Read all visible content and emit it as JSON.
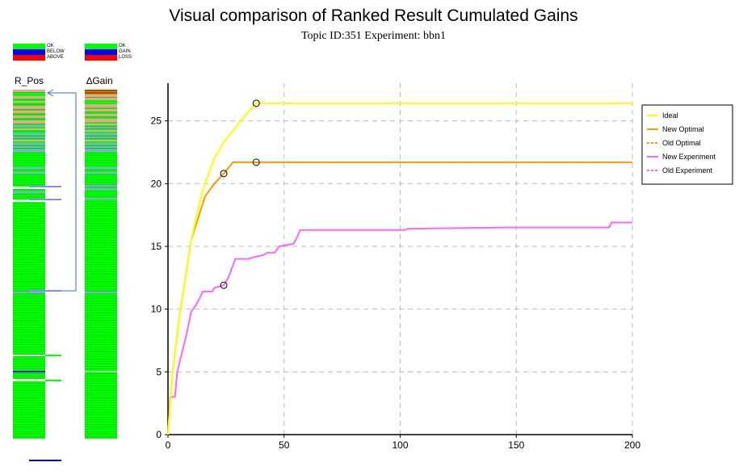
{
  "header": {
    "title": "Visual comparison of Ranked Result Cumulated Gains",
    "subtitle": "Topic ID:351 Experiment: bbn1"
  },
  "left_legend": {
    "items": [
      {
        "label": "OK",
        "color": "#00ff00"
      },
      {
        "label": "BELOW",
        "color": "#0000ff"
      },
      {
        "label": "ABOVE",
        "color": "#ff0000"
      }
    ]
  },
  "right_legend": {
    "items": [
      {
        "label": "OK",
        "color": "#00ff00"
      },
      {
        "label": "GAIN",
        "color": "#0000ff"
      },
      {
        "label": "LOSS",
        "color": "#ff0000"
      }
    ]
  },
  "columns": {
    "rpos_label": "R_Pos",
    "dgain_label": "∆Gain"
  },
  "chart_data": {
    "type": "line",
    "xlim": [
      0,
      200
    ],
    "ylim": [
      0,
      28
    ],
    "xticks": [
      0,
      50,
      100,
      150,
      200
    ],
    "yticks": [
      0,
      5,
      10,
      15,
      20,
      25
    ],
    "grid": true,
    "legend_position": "top-right",
    "series": [
      {
        "name": "Ideal",
        "color": "#ffff00",
        "dash": false,
        "points": [
          [
            0,
            0
          ],
          [
            2,
            5
          ],
          [
            5,
            9.5
          ],
          [
            10,
            15.5
          ],
          [
            15,
            19.5
          ],
          [
            20,
            22
          ],
          [
            24,
            23.3
          ],
          [
            30,
            24.7
          ],
          [
            35,
            25.8
          ],
          [
            38,
            26.4
          ],
          [
            200,
            26.4
          ]
        ]
      },
      {
        "name": "New Optimal",
        "color": "#ff9900",
        "dash": false,
        "points": [
          [
            0,
            0
          ],
          [
            2,
            5
          ],
          [
            5,
            9.5
          ],
          [
            10,
            15.5
          ],
          [
            16,
            19
          ],
          [
            20,
            20
          ],
          [
            24,
            20.8
          ],
          [
            28,
            21.7
          ],
          [
            200,
            21.7
          ]
        ]
      },
      {
        "name": "Old Optimal",
        "color": "#ff9900",
        "dash": true,
        "points": [
          [
            0,
            0
          ],
          [
            2,
            5
          ],
          [
            5,
            9.5
          ],
          [
            10,
            15.5
          ],
          [
            16,
            19
          ],
          [
            20,
            20
          ],
          [
            24,
            20.8
          ],
          [
            28,
            21.7
          ],
          [
            200,
            21.7
          ]
        ]
      },
      {
        "name": "New Experiment",
        "color": "#ff66ff",
        "dash": false,
        "points": [
          [
            0,
            0
          ],
          [
            1,
            3
          ],
          [
            3,
            3
          ],
          [
            4,
            5
          ],
          [
            6,
            6.5
          ],
          [
            8,
            8
          ],
          [
            10,
            9.8
          ],
          [
            12,
            10.3
          ],
          [
            14,
            11
          ],
          [
            15,
            11.4
          ],
          [
            19,
            11.4
          ],
          [
            20,
            11.7
          ],
          [
            24,
            11.9
          ],
          [
            26,
            12.5
          ],
          [
            27,
            13
          ],
          [
            28,
            13.5
          ],
          [
            29,
            14
          ],
          [
            35,
            14
          ],
          [
            36,
            14.1
          ],
          [
            41,
            14.3
          ],
          [
            43,
            14.5
          ],
          [
            46,
            14.5
          ],
          [
            48,
            15
          ],
          [
            51,
            15.1
          ],
          [
            54,
            15.2
          ],
          [
            55,
            15.5
          ],
          [
            57,
            16.3
          ],
          [
            102,
            16.3
          ],
          [
            103,
            16.4
          ],
          [
            145,
            16.5
          ],
          [
            190,
            16.5
          ],
          [
            191,
            16.9
          ],
          [
            200,
            16.9
          ]
        ]
      },
      {
        "name": "Old Experiment",
        "color": "#ff66ff",
        "dash": true,
        "points": [
          [
            0,
            0
          ],
          [
            1,
            3
          ],
          [
            3,
            3
          ],
          [
            4,
            5
          ],
          [
            6,
            6.5
          ],
          [
            8,
            8
          ],
          [
            10,
            9.8
          ],
          [
            12,
            10.3
          ],
          [
            14,
            11
          ],
          [
            15,
            11.4
          ],
          [
            19,
            11.4
          ],
          [
            20,
            11.7
          ],
          [
            24,
            11.9
          ],
          [
            26,
            12.5
          ],
          [
            27,
            13
          ],
          [
            28,
            13.5
          ],
          [
            29,
            14
          ],
          [
            35,
            14
          ],
          [
            36,
            14.1
          ],
          [
            41,
            14.3
          ],
          [
            43,
            14.5
          ],
          [
            46,
            14.5
          ],
          [
            48,
            15
          ],
          [
            51,
            15.1
          ],
          [
            54,
            15.2
          ],
          [
            55,
            15.5
          ],
          [
            57,
            16.3
          ],
          [
            102,
            16.3
          ],
          [
            103,
            16.4
          ],
          [
            145,
            16.5
          ],
          [
            190,
            16.5
          ],
          [
            191,
            16.9
          ],
          [
            200,
            16.9
          ]
        ]
      }
    ],
    "markers": [
      {
        "x": 38,
        "y": 26.4
      },
      {
        "x": 24,
        "y": 20.8
      },
      {
        "x": 38,
        "y": 21.7
      },
      {
        "x": 24,
        "y": 11.9
      }
    ]
  }
}
